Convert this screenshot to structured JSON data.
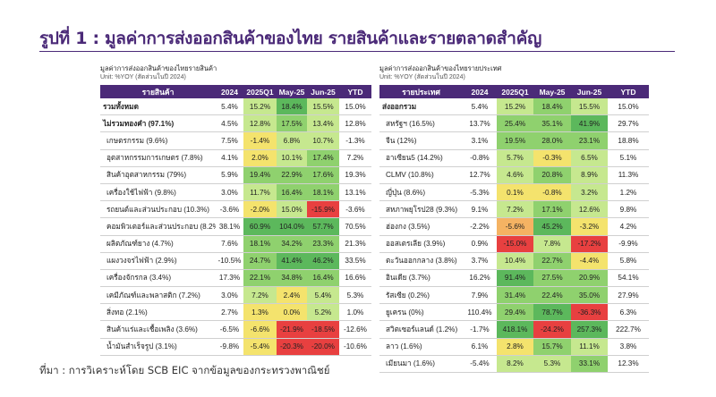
{
  "title": "รูปที่ 1 : มูลค่าการส่งออกสินค้าของไทย รายสินค้าและรายตลาดสำคัญ",
  "footer": "ที่มา : การวิเคราะห์โดย SCB EIC จากข้อมูลของกระทรวงพาณิชย์",
  "colors": {
    "header": "#4b2a78",
    "dark_green": "#5cb85c",
    "green": "#8fd16e",
    "light_green": "#c6e88f",
    "yellow": "#f4e36d",
    "orange": "#f5b363",
    "red": "#e84040",
    "none": "#ffffff"
  },
  "left": {
    "title": "มูลค่าการส่งออกสินค้าของไทยรายสินค้า",
    "unit": "Unit: %YOY (สัดส่วนในปี 2024)",
    "headers": [
      "รายสินค้า",
      "2024",
      "2025Q1",
      "May-25",
      "Jun-25",
      "YTD"
    ],
    "rows": [
      {
        "label": "รวมทั้งหมด",
        "v": [
          "5.4%",
          "15.2%",
          "18.4%",
          "15.5%",
          "15.0%"
        ],
        "c": [
          "none",
          "lg",
          "dg",
          "lg",
          "none"
        ],
        "bold": true
      },
      {
        "label": "ไม่รวมทองคำ (97.1%)",
        "v": [
          "4.5%",
          "12.8%",
          "17.5%",
          "13.4%",
          "12.8%"
        ],
        "c": [
          "none",
          "lg",
          "g",
          "lg",
          "none"
        ],
        "bold": true
      },
      {
        "label": "เกษตรกรรม (9.6%)",
        "v": [
          "7.5%",
          "-1.4%",
          "6.8%",
          "10.7%",
          "-1.3%"
        ],
        "c": [
          "none",
          "y",
          "lg",
          "lg",
          "none"
        ]
      },
      {
        "label": "อุตสาหกรรมการเกษตร (7.8%)",
        "v": [
          "4.1%",
          "2.0%",
          "10.1%",
          "17.4%",
          "7.2%"
        ],
        "c": [
          "none",
          "y",
          "lg",
          "g",
          "none"
        ]
      },
      {
        "label": "สินค้าอุตสาหกรรม (79%)",
        "v": [
          "5.9%",
          "19.4%",
          "22.9%",
          "17.6%",
          "19.3%"
        ],
        "c": [
          "none",
          "g",
          "g",
          "g",
          "none"
        ]
      },
      {
        "label": "เครื่องใช้ไฟฟ้า (9.8%)",
        "v": [
          "3.0%",
          "11.7%",
          "16.4%",
          "18.1%",
          "13.1%"
        ],
        "c": [
          "none",
          "lg",
          "g",
          "g",
          "none"
        ]
      },
      {
        "label": "รถยนต์และส่วนประกอบ (10.3%)",
        "v": [
          "-3.6%",
          "-2.0%",
          "15.0%",
          "-15.9%",
          "-3.6%"
        ],
        "c": [
          "none",
          "y",
          "lg",
          "r",
          "none"
        ]
      },
      {
        "label": "คอมพิวเตอร์และส่วนประกอบ (8.2%)",
        "v": [
          "38.1%",
          "60.9%",
          "104.0%",
          "57.7%",
          "70.5%"
        ],
        "c": [
          "none",
          "dg",
          "dg",
          "dg",
          "none"
        ]
      },
      {
        "label": "ผลิตภัณฑ์ยาง (4.7%)",
        "v": [
          "7.6%",
          "18.1%",
          "34.2%",
          "23.3%",
          "21.3%"
        ],
        "c": [
          "none",
          "g",
          "g",
          "g",
          "none"
        ]
      },
      {
        "label": "แผงวงจรไฟฟ้า (2.9%)",
        "v": [
          "-10.5%",
          "24.7%",
          "41.4%",
          "46.2%",
          "33.5%"
        ],
        "c": [
          "none",
          "g",
          "dg",
          "dg",
          "none"
        ]
      },
      {
        "label": "เครื่องจักรกล (3.4%)",
        "v": [
          "17.3%",
          "22.1%",
          "34.8%",
          "16.4%",
          "16.6%"
        ],
        "c": [
          "none",
          "g",
          "g",
          "g",
          "none"
        ]
      },
      {
        "label": "เคมีภัณฑ์และพลาสติก (7.2%)",
        "v": [
          "3.0%",
          "7.2%",
          "2.4%",
          "5.4%",
          "5.3%"
        ],
        "c": [
          "none",
          "lg",
          "y",
          "lg",
          "none"
        ]
      },
      {
        "label": "สิ่งทอ (2.1%)",
        "v": [
          "2.7%",
          "1.3%",
          "0.0%",
          "5.2%",
          "1.0%"
        ],
        "c": [
          "none",
          "y",
          "y",
          "lg",
          "none"
        ]
      },
      {
        "label": "สินค้าแร่และเชื้อเพลิง (3.6%)",
        "v": [
          "-6.5%",
          "-6.6%",
          "-21.9%",
          "-18.5%",
          "-12.6%"
        ],
        "c": [
          "none",
          "y",
          "r",
          "r",
          "none"
        ]
      },
      {
        "label": "น้ำมันสำเร็จรูป (3.1%)",
        "v": [
          "-9.8%",
          "-5.4%",
          "-20.3%",
          "-20.0%",
          "-10.6%"
        ],
        "c": [
          "none",
          "y",
          "r",
          "r",
          "none"
        ]
      }
    ]
  },
  "right": {
    "title": "มูลค่าการส่งออกสินค้าของไทยรายประเทศ",
    "unit": "Unit: %YOY (สัดส่วนในปี 2024)",
    "headers": [
      "รายประเทศ",
      "2024",
      "2025Q1",
      "May-25",
      "Jun-25",
      "YTD"
    ],
    "rows": [
      {
        "label": "ส่งออกรวม",
        "v": [
          "5.4%",
          "15.2%",
          "18.4%",
          "15.5%",
          "15.0%"
        ],
        "c": [
          "none",
          "lg",
          "g",
          "lg",
          "none"
        ],
        "bold": true
      },
      {
        "label": "สหรัฐฯ (16.5%)",
        "v": [
          "13.7%",
          "25.4%",
          "35.1%",
          "41.9%",
          "29.7%"
        ],
        "c": [
          "none",
          "g",
          "g",
          "dg",
          "none"
        ]
      },
      {
        "label": "จีน (12%)",
        "v": [
          "3.1%",
          "19.5%",
          "28.0%",
          "23.1%",
          "18.8%"
        ],
        "c": [
          "none",
          "g",
          "g",
          "g",
          "none"
        ]
      },
      {
        "label": "อาเซียน5 (14.2%)",
        "v": [
          "-0.8%",
          "5.7%",
          "-0.3%",
          "6.5%",
          "5.1%"
        ],
        "c": [
          "none",
          "lg",
          "y",
          "lg",
          "none"
        ]
      },
      {
        "label": "CLMV (10.8%)",
        "v": [
          "12.7%",
          "4.6%",
          "20.8%",
          "8.9%",
          "11.3%"
        ],
        "c": [
          "none",
          "lg",
          "g",
          "lg",
          "none"
        ]
      },
      {
        "label": "ญี่ปุ่น (8.6%)",
        "v": [
          "-5.3%",
          "0.1%",
          "-0.8%",
          "3.2%",
          "1.2%"
        ],
        "c": [
          "none",
          "y",
          "y",
          "lg",
          "none"
        ]
      },
      {
        "label": "สหภาพยุโรป28 (9.3%)",
        "v": [
          "9.1%",
          "7.2%",
          "17.1%",
          "12.6%",
          "9.8%"
        ],
        "c": [
          "none",
          "lg",
          "g",
          "lg",
          "none"
        ]
      },
      {
        "label": "ฮ่องกง (3.5%)",
        "v": [
          "-2.2%",
          "-5.6%",
          "45.2%",
          "-3.2%",
          "4.2%"
        ],
        "c": [
          "none",
          "o",
          "dg",
          "y",
          "none"
        ]
      },
      {
        "label": "ออสเตรเลีย (3.9%)",
        "v": [
          "0.9%",
          "-15.0%",
          "7.8%",
          "-17.2%",
          "-9.9%"
        ],
        "c": [
          "none",
          "r",
          "lg",
          "r",
          "none"
        ]
      },
      {
        "label": "ตะวันออกกลาง (3.8%)",
        "v": [
          "3.7%",
          "10.4%",
          "22.7%",
          "-4.4%",
          "5.8%"
        ],
        "c": [
          "none",
          "lg",
          "g",
          "y",
          "none"
        ]
      },
      {
        "label": "อินเดีย (3.7%)",
        "v": [
          "16.2%",
          "91.4%",
          "27.5%",
          "20.9%",
          "54.1%"
        ],
        "c": [
          "none",
          "dg",
          "g",
          "g",
          "none"
        ]
      },
      {
        "label": "รัสเซีย (0.2%)",
        "v": [
          "7.9%",
          "31.4%",
          "22.4%",
          "35.0%",
          "27.9%"
        ],
        "c": [
          "none",
          "g",
          "g",
          "g",
          "none"
        ]
      },
      {
        "label": "ยูเครน (0%)",
        "v": [
          "110.4%",
          "29.4%",
          "78.7%",
          "-36.3%",
          "6.3%"
        ],
        "c": [
          "none",
          "g",
          "dg",
          "r",
          "none"
        ]
      },
      {
        "label": "สวิตเซอร์แลนด์ (1.2%)",
        "v": [
          "-1.7%",
          "418.1%",
          "-24.2%",
          "257.3%",
          "222.7%"
        ],
        "c": [
          "none",
          "dg",
          "r",
          "dg",
          "none"
        ]
      },
      {
        "label": "ลาว (1.6%)",
        "v": [
          "6.1%",
          "2.8%",
          "15.7%",
          "11.1%",
          "3.8%"
        ],
        "c": [
          "none",
          "y",
          "g",
          "lg",
          "none"
        ]
      },
      {
        "label": "เมียนมา (1.6%)",
        "v": [
          "-5.4%",
          "8.2%",
          "5.3%",
          "33.1%",
          "12.3%"
        ],
        "c": [
          "none",
          "lg",
          "lg",
          "g",
          "none"
        ]
      }
    ]
  }
}
